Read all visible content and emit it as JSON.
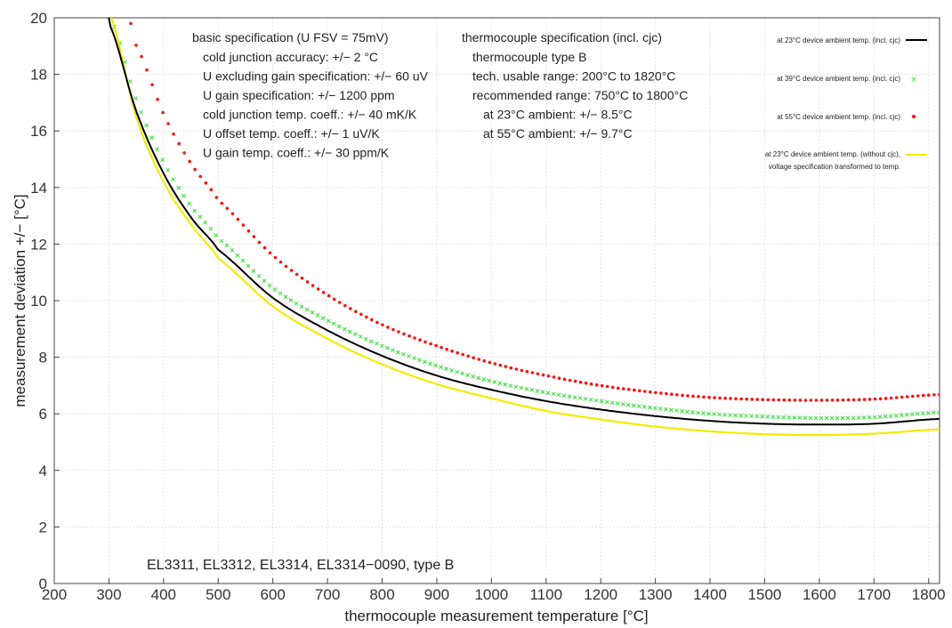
{
  "chart_data": {
    "type": "line",
    "xlabel": "thermocouple measurement temperature [°C]",
    "ylabel": "measurement deviation +/− [°C]",
    "xlim": [
      200,
      1820
    ],
    "ylim": [
      0,
      20
    ],
    "x_ticks": [
      200,
      300,
      400,
      500,
      600,
      700,
      800,
      900,
      1000,
      1100,
      1200,
      1300,
      1400,
      1500,
      1600,
      1700,
      1800
    ],
    "y_ticks": [
      0,
      2,
      4,
      6,
      8,
      10,
      12,
      14,
      16,
      18,
      20
    ],
    "grid": true,
    "legend_position": "top-right",
    "annotation": "EL3311, EL3312, EL3314, EL3314−0090, type B",
    "basic_spec": {
      "title": "basic specification (U FSV = 75mV)",
      "lines": [
        "cold junction accuracy: +/− 2 °C",
        "U excluding gain specification: +/− 60 uV",
        "U gain specification: +/− 1200 ppm",
        "cold junction temp. coeff.: +/− 40 mK/K",
        "U offset temp. coeff.: +/− 1 uV/K",
        "U gain temp. coeff.: +/− 30 ppm/K"
      ]
    },
    "tc_spec": {
      "title": "thermocouple specification (incl. cjc)",
      "lines": [
        "thermocouple type B",
        "tech. usable range: 200°C to 1820°C",
        "recommended range: 750°C to 1800°C",
        "at 23°C ambient: +/− 8.5°C",
        "at 55°C ambient: +/− 9.7°C"
      ]
    },
    "series": [
      {
        "name": "at 23°C device ambient temp. (incl. cjc)",
        "color": "#000000",
        "style": "line",
        "x": [
          295,
          300,
          350,
          400,
          450,
          500,
          600,
          700,
          800,
          900,
          1000,
          1100,
          1200,
          1300,
          1400,
          1500,
          1600,
          1700,
          1820
        ],
        "y": [
          20.3,
          19.8,
          16.7,
          14.5,
          12.95,
          11.8,
          10.1,
          8.95,
          8.05,
          7.35,
          6.85,
          6.45,
          6.15,
          5.92,
          5.75,
          5.65,
          5.62,
          5.65,
          5.82
        ]
      },
      {
        "name": "at 39°C device ambient temp. (incl. cjc)",
        "color": "#33dd33",
        "style": "x-markers",
        "x": [
          300,
          350,
          400,
          450,
          500,
          600,
          700,
          800,
          900,
          1000,
          1100,
          1200,
          1300,
          1400,
          1500,
          1600,
          1700,
          1820
        ],
        "y": [
          20.1,
          17.1,
          14.9,
          13.35,
          12.2,
          10.45,
          9.3,
          8.4,
          7.7,
          7.15,
          6.75,
          6.45,
          6.2,
          6.0,
          5.9,
          5.85,
          5.88,
          6.05
        ]
      },
      {
        "name": "at 55°C device ambient temp. (incl. cjc)",
        "color": "#ff1111",
        "style": "dots",
        "x": [
          340,
          350,
          400,
          450,
          500,
          600,
          700,
          800,
          900,
          1000,
          1100,
          1200,
          1300,
          1400,
          1500,
          1600,
          1700,
          1820
        ],
        "y": [
          19.8,
          19.0,
          16.6,
          14.85,
          13.55,
          11.6,
          10.2,
          9.15,
          8.4,
          7.8,
          7.35,
          7.0,
          6.75,
          6.58,
          6.5,
          6.48,
          6.52,
          6.68
        ]
      },
      {
        "name": "at 23°C device ambient temp. (without cjc), voltage specification transformed to temp.",
        "color": "#eeee00",
        "style": "line",
        "x": [
          300,
          350,
          400,
          450,
          500,
          600,
          700,
          800,
          900,
          1000,
          1100,
          1200,
          1300,
          1400,
          1500,
          1600,
          1700,
          1820
        ],
        "y": [
          20.2,
          16.5,
          14.2,
          12.7,
          11.5,
          9.8,
          8.65,
          7.75,
          7.05,
          6.55,
          6.1,
          5.8,
          5.55,
          5.38,
          5.28,
          5.25,
          5.3,
          5.45
        ]
      }
    ]
  },
  "legend": {
    "l1": "at 23°C device ambient temp. (incl. cjc)",
    "l2": "at 39°C device ambient temp. (incl. cjc)",
    "l3": "at 55°C device ambient temp. (incl. cjc)",
    "l4a": "at 23°C device ambient temp. (without cjc),",
    "l4b": "voltage specification transformed to temp."
  }
}
